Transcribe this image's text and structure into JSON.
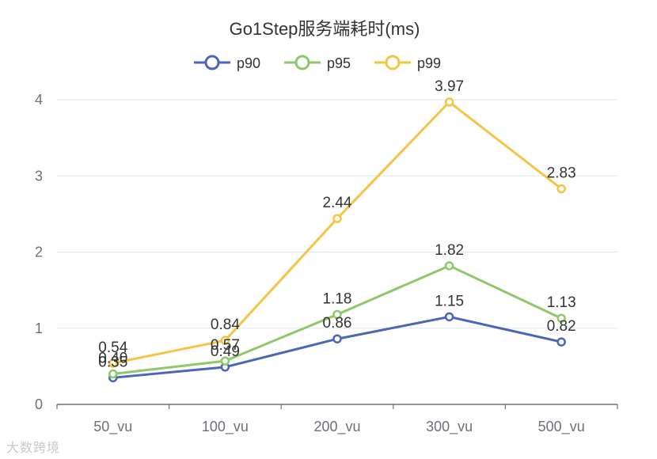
{
  "chart_data": {
    "type": "line",
    "title": "Go1Step服务端耗时(ms)",
    "categories": [
      "50_vu",
      "100_vu",
      "200_vu",
      "300_vu",
      "500_vu"
    ],
    "series": [
      {
        "name": "p90",
        "color": "#4a66b8",
        "values": [
          0.35,
          0.49,
          0.86,
          1.15,
          0.82
        ]
      },
      {
        "name": "p95",
        "color": "#8dc86a",
        "values": [
          0.4,
          0.57,
          1.18,
          1.82,
          1.13
        ]
      },
      {
        "name": "p99",
        "color": "#f5c444",
        "values": [
          0.54,
          0.84,
          2.44,
          3.97,
          2.83
        ]
      }
    ],
    "ylim": [
      0,
      4
    ],
    "yticks": [
      0,
      1,
      2,
      3,
      4
    ],
    "grid": true,
    "legend_position": "top-center",
    "xlabel": "",
    "ylabel": ""
  },
  "watermark": "大数跨境"
}
